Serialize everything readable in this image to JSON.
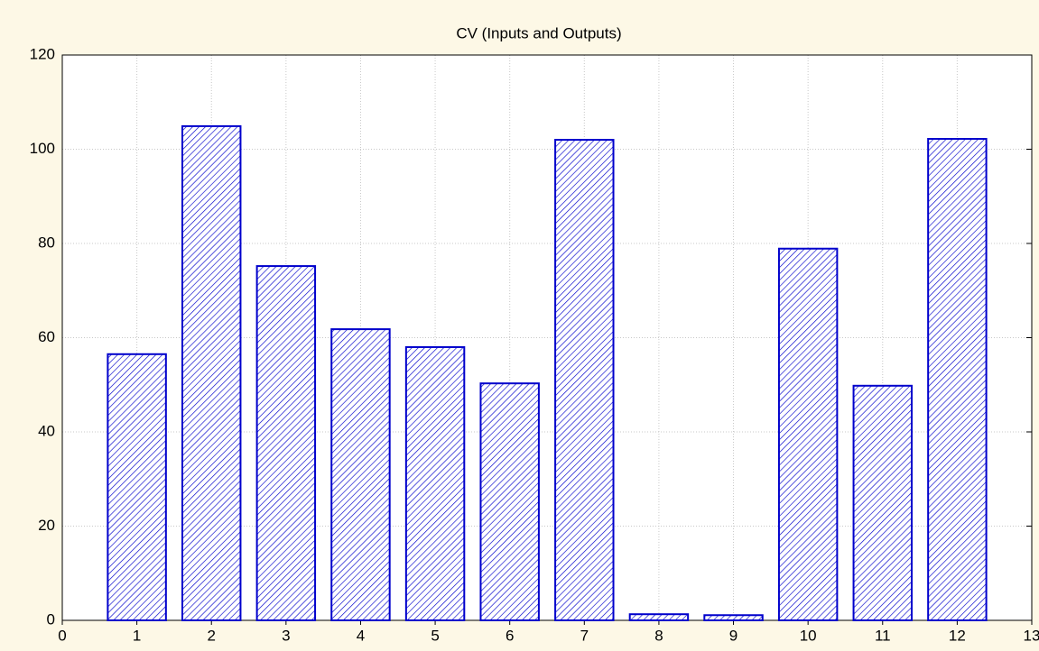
{
  "chart_data": {
    "type": "bar",
    "title": "CV (Inputs and Outputs)",
    "x": [
      1,
      2,
      3,
      4,
      5,
      6,
      7,
      8,
      9,
      10,
      11,
      12
    ],
    "values": [
      56.5,
      104.9,
      75.2,
      61.8,
      58.0,
      50.3,
      102.0,
      1.3,
      1.1,
      78.9,
      49.8,
      102.2
    ],
    "color": "#0000cc",
    "xlim": [
      0,
      13
    ],
    "xticks": [
      0,
      1,
      2,
      3,
      4,
      5,
      6,
      7,
      8,
      9,
      10,
      11,
      12,
      13
    ],
    "ylim": [
      0,
      120
    ],
    "yticks": [
      0,
      20,
      40,
      60,
      80,
      100,
      120
    ],
    "grid": true
  }
}
